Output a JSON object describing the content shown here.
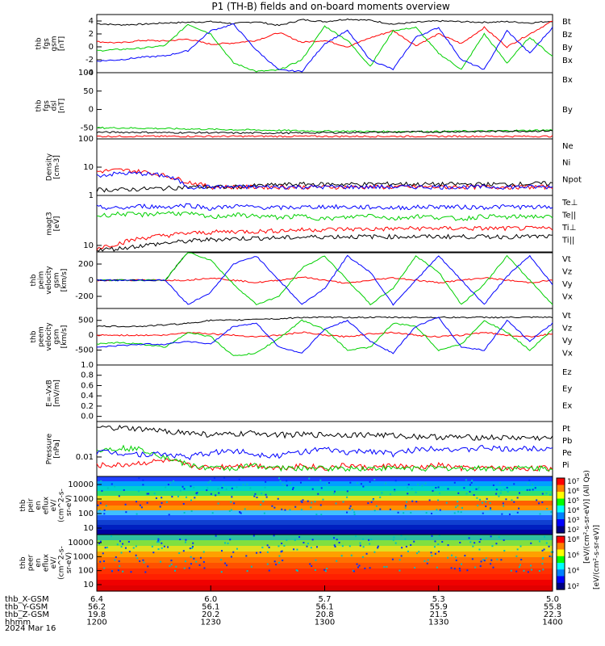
{
  "title": "P1 (TH-B) fields and on-board moments overview",
  "colors": {
    "black": "#000000",
    "red": "#ff0000",
    "green": "#00d000",
    "blue": "#0000ff"
  },
  "chart_data": [
    {
      "id": "fgs",
      "type": "line",
      "ylabel": [
        "thb",
        "fgs",
        "gsm",
        "[nT]"
      ],
      "ylim": [
        -4,
        5
      ],
      "ticks": [
        -4,
        -2,
        0,
        2,
        4
      ],
      "series": [
        {
          "name": "Bt",
          "color": "#000000",
          "values": [
            3.6,
            3.4,
            3.5,
            3.7,
            3.8,
            3.9,
            3.6,
            3.9,
            3.3,
            4.2,
            3.9,
            4.3,
            4.1,
            3.5,
            3.8,
            4.0,
            3.9,
            3.8,
            3.9,
            3.7,
            4.0
          ]
        },
        {
          "name": "Bz",
          "color": "#ff0000",
          "values": [
            0.8,
            0.6,
            1.0,
            0.9,
            1.2,
            0.4,
            0.6,
            1.0,
            2.2,
            0.7,
            1.0,
            0.0,
            1.4,
            2.5,
            0.2,
            2.0,
            0.5,
            3.0,
            0.0,
            2.0,
            4.0
          ]
        },
        {
          "name": "By",
          "color": "#00d000",
          "values": [
            -0.6,
            -0.4,
            -0.2,
            0.2,
            3.5,
            2.0,
            -2.5,
            -3.8,
            -3.6,
            -2.0,
            3.2,
            1.0,
            -3.0,
            2.5,
            3.0,
            -1.0,
            -3.5,
            2.0,
            -2.5,
            1.5,
            -1.5
          ]
        },
        {
          "name": "Bx",
          "color": "#0000ff",
          "values": [
            -2.2,
            -2.0,
            -1.6,
            -1.4,
            -0.6,
            2.5,
            3.5,
            -0.5,
            -3.6,
            -3.8,
            0.5,
            2.5,
            -2.0,
            -3.5,
            1.5,
            3.0,
            -2.0,
            -3.5,
            2.5,
            -1.0,
            3.0
          ]
        }
      ],
      "legend": [
        "Bt",
        "Bz",
        "By",
        "Bx"
      ]
    },
    {
      "id": "fgsdsl",
      "type": "line",
      "ylabel": [
        "thb",
        "fgs",
        "dsl",
        "[nT]"
      ],
      "ylim": [
        -80,
        100
      ],
      "ticks": [
        -50,
        0,
        50,
        100
      ],
      "series": [
        {
          "name": "Bz",
          "color": "#ff0000",
          "values": [
            -73,
            -73,
            -73,
            -73,
            -73,
            -73,
            -73,
            -73,
            -73,
            -73,
            -73,
            -73,
            -73,
            -73,
            -73,
            -73,
            -73,
            -73,
            -73,
            -73,
            -73
          ]
        },
        {
          "name": "By",
          "color": "#00d000",
          "values": [
            -50,
            -50,
            -51,
            -52,
            -53,
            -54,
            -55,
            -56,
            -57,
            -58,
            -59,
            -59,
            -60,
            -60,
            -60,
            -60,
            -59,
            -59,
            -58,
            -57,
            -56
          ]
        },
        {
          "name": "Bx",
          "color": "#000000",
          "values": [
            -62,
            -62,
            -62,
            -63,
            -63,
            -63,
            -64,
            -64,
            -64,
            -64,
            -63,
            -63,
            -62,
            -62,
            -61,
            -61,
            -60,
            -60,
            -59,
            -59,
            -58
          ]
        }
      ],
      "legend": [
        "Bx",
        "By"
      ]
    },
    {
      "id": "density",
      "type": "line",
      "scale": "log",
      "ylabel": [
        "Density",
        "[cm-3]"
      ],
      "ylim": [
        1,
        100
      ],
      "ticklabels": [
        "1",
        "10",
        "100"
      ],
      "series": [
        {
          "name": "Ne",
          "color": "#ff0000",
          "values": [
            7,
            8,
            7,
            5,
            3,
            2,
            2,
            2,
            2,
            2,
            2,
            2,
            2,
            2,
            2,
            2,
            2,
            2,
            2,
            2,
            2
          ]
        },
        {
          "name": "Ni",
          "color": "#000000",
          "values": [
            1.6,
            1.6,
            1.7,
            1.8,
            2,
            2,
            2,
            2.2,
            2.4,
            2.5,
            2.5,
            2.5,
            2.5,
            2.6,
            2.5,
            2.5,
            2.5,
            2.5,
            2.5,
            2.6,
            2.7
          ]
        },
        {
          "name": "Npot",
          "color": "#0000ff",
          "values": [
            5,
            6,
            6,
            5,
            2,
            2,
            2,
            2,
            2,
            2,
            2,
            2,
            2,
            2,
            2,
            2,
            2,
            2,
            2,
            2,
            2
          ]
        }
      ],
      "legend": [
        "Ne",
        "Ni",
        "Npot"
      ]
    },
    {
      "id": "temp",
      "type": "line",
      "scale": "log",
      "ylabel": [
        "magt3",
        "[eV]"
      ],
      "ylim": [
        6,
        500
      ],
      "ticklabels": [
        "10"
      ],
      "series": [
        {
          "name": "Te⊥",
          "color": "#ff0000",
          "values": [
            8,
            12,
            18,
            22,
            26,
            28,
            30,
            30,
            32,
            34,
            35,
            36,
            36,
            37,
            38,
            38,
            38,
            38,
            38,
            38,
            38
          ]
        },
        {
          "name": "Te||",
          "color": "#000000",
          "values": [
            7,
            8,
            10,
            12,
            14,
            16,
            17,
            18,
            18,
            19,
            20,
            20,
            20,
            20,
            20,
            20,
            20,
            20,
            20,
            20,
            20
          ]
        },
        {
          "name": "Ti⊥",
          "color": "#0000ff",
          "values": [
            200,
            180,
            220,
            200,
            240,
            180,
            220,
            200,
            190,
            200,
            210,
            200,
            200,
            190,
            200,
            210,
            200,
            200,
            210,
            200,
            200
          ]
        },
        {
          "name": "Ti||",
          "color": "#00d000",
          "values": [
            100,
            120,
            110,
            130,
            120,
            90,
            110,
            100,
            90,
            100,
            80,
            90,
            110,
            80,
            100,
            90,
            80,
            100,
            90,
            100,
            90
          ]
        }
      ],
      "legend": [
        "Te⊥",
        "Te||",
        "Ti⊥",
        "Ti||"
      ]
    },
    {
      "id": "vi",
      "type": "line",
      "ylabel": [
        "thb",
        "peim",
        "velocity",
        "gsm",
        "[km/s]"
      ],
      "ylim": [
        -350,
        350
      ],
      "ticks": [
        -200,
        0,
        200
      ],
      "series": [
        {
          "name": "Vt",
          "color": "#000000",
          "values": [
            0,
            0,
            0,
            0,
            350,
            350,
            350,
            350,
            350,
            350,
            350,
            350,
            350,
            350,
            350,
            350,
            350,
            350,
            350,
            350,
            350
          ]
        },
        {
          "name": "Vz",
          "color": "#ff0000",
          "values": [
            0,
            0,
            0,
            0,
            0,
            30,
            0,
            -30,
            0,
            40,
            0,
            -40,
            0,
            30,
            0,
            -30,
            0,
            30,
            0,
            -30,
            0
          ]
        },
        {
          "name": "Vy",
          "color": "#00d000",
          "values": [
            0,
            0,
            0,
            0,
            350,
            250,
            -50,
            -300,
            -200,
            150,
            300,
            0,
            -300,
            -100,
            300,
            100,
            -300,
            -50,
            300,
            0,
            -300
          ]
        },
        {
          "name": "Vx",
          "color": "#0000ff",
          "values": [
            0,
            0,
            0,
            0,
            -300,
            -150,
            200,
            300,
            0,
            -300,
            -100,
            300,
            100,
            -300,
            0,
            300,
            0,
            -300,
            50,
            300,
            -50
          ]
        }
      ],
      "legend": [
        "Vt",
        "Vz",
        "Vy",
        "Vx"
      ]
    },
    {
      "id": "ve",
      "type": "line",
      "ylabel": [
        "thb",
        "peem",
        "velocity",
        "gsm",
        "[km/s]"
      ],
      "ylim": [
        -1000,
        900
      ],
      "ticks": [
        -500,
        0,
        500
      ],
      "series": [
        {
          "name": "Vt",
          "color": "#000000",
          "values": [
            300,
            300,
            300,
            350,
            400,
            500,
            500,
            550,
            550,
            600,
            600,
            600,
            600,
            600,
            600,
            600,
            600,
            600,
            600,
            600,
            600
          ]
        },
        {
          "name": "Vz",
          "color": "#ff0000",
          "values": [
            0,
            0,
            0,
            0,
            100,
            50,
            0,
            -50,
            0,
            100,
            0,
            -50,
            50,
            100,
            0,
            -50,
            0,
            100,
            0,
            -50,
            50
          ]
        },
        {
          "name": "Vy",
          "color": "#00d000",
          "values": [
            -300,
            -250,
            -300,
            -400,
            100,
            -50,
            -700,
            -600,
            -100,
            500,
            200,
            -500,
            -400,
            400,
            300,
            -500,
            -300,
            500,
            100,
            -500,
            200
          ]
        },
        {
          "name": "Vx",
          "color": "#0000ff",
          "values": [
            -400,
            -350,
            -300,
            -300,
            -200,
            -300,
            300,
            400,
            -400,
            -600,
            200,
            500,
            -200,
            -600,
            300,
            600,
            -400,
            -500,
            500,
            -200,
            400
          ]
        }
      ],
      "legend": [
        "Vt",
        "Vz",
        "Vy",
        "Vx"
      ]
    },
    {
      "id": "efield",
      "type": "line",
      "ylabel": [
        "E=-VxB",
        "[mV/m]"
      ],
      "ylim": [
        -0.1,
        1.0
      ],
      "ticklabels": [
        "0.0",
        "0.2",
        "0.4",
        "0.6",
        "0.8",
        "1.0"
      ],
      "series": [],
      "legend": [
        "Ez",
        "Ey",
        "Ex"
      ]
    },
    {
      "id": "pressure",
      "type": "line",
      "scale": "log",
      "ylabel": [
        "Pressure",
        "[nPa]"
      ],
      "ylim": [
        0.003,
        0.09
      ],
      "ticklabels": [
        "0.01"
      ],
      "series": [
        {
          "name": "Pt",
          "color": "#000000",
          "values": [
            0.06,
            0.06,
            0.055,
            0.05,
            0.045,
            0.04,
            0.04,
            0.045,
            0.04,
            0.04,
            0.04,
            0.04,
            0.04,
            0.038,
            0.036,
            0.035,
            0.034,
            0.034,
            0.033,
            0.033,
            0.032
          ]
        },
        {
          "name": "Pb",
          "color": "#ff0000",
          "values": [
            0.006,
            0.006,
            0.007,
            0.008,
            0.006,
            0.005,
            0.006,
            0.006,
            0.005,
            0.006,
            0.005,
            0.006,
            0.005,
            0.006,
            0.005,
            0.006,
            0.005,
            0.005,
            0.005,
            0.005,
            0.005
          ]
        },
        {
          "name": "Pe",
          "color": "#00d000",
          "values": [
            0.015,
            0.018,
            0.016,
            0.01,
            0.006,
            0.005,
            0.005,
            0.006,
            0.005,
            0.005,
            0.005,
            0.005,
            0.005,
            0.005,
            0.005,
            0.005,
            0.005,
            0.005,
            0.005,
            0.005,
            0.005
          ]
        },
        {
          "name": "Pi",
          "color": "#0000ff",
          "values": [
            0.014,
            0.013,
            0.012,
            0.012,
            0.01,
            0.013,
            0.015,
            0.012,
            0.011,
            0.014,
            0.016,
            0.013,
            0.015,
            0.012,
            0.016,
            0.018,
            0.015,
            0.018,
            0.016,
            0.017,
            0.018
          ]
        }
      ],
      "legend": [
        "Pt",
        "Pb",
        "Pe",
        "Pi"
      ]
    },
    {
      "id": "peir",
      "type": "heatmap",
      "ylabel": [
        "thb",
        "peir",
        "en",
        "eflux",
        "eV/",
        "(cm^2-s-",
        "sr-eV)"
      ],
      "ticklabels": [
        "10",
        "100",
        "1000",
        "10000"
      ]
    },
    {
      "id": "peer",
      "type": "heatmap",
      "ylabel": [
        "thb",
        "peer",
        "en",
        "eflux",
        "eV/",
        "(cm^2-s-",
        "sr-eV)"
      ],
      "ticklabels": [
        "10",
        "100",
        "1000",
        "10000"
      ]
    }
  ],
  "colorbar": {
    "label": "[eV/(cm²-s-sr-eV)]",
    "label_ion": "[eV/(cm²-s-sr-eV)] (All Qs)",
    "ion_ticks": [
      "10²",
      "10³",
      "10⁴",
      "10⁵",
      "10⁶",
      "10⁷"
    ],
    "ele_ticks": [
      "10²",
      "10⁴",
      "10⁶",
      "10⁸"
    ]
  },
  "xaxis": {
    "rows": [
      {
        "label": "thb_X-GSM",
        "values": [
          "6.4",
          "6.0",
          "5.7",
          "5.3",
          "5.0"
        ]
      },
      {
        "label": "thb_Y-GSM",
        "values": [
          "56.2",
          "56.1",
          "56.1",
          "55.9",
          "55.8"
        ]
      },
      {
        "label": "thb_Z-GSM",
        "values": [
          "19.8",
          "20.2",
          "20.8",
          "21.5",
          "22.3"
        ]
      },
      {
        "label": "hhmm",
        "values": [
          "1200",
          "1230",
          "1300",
          "1330",
          "1400"
        ]
      }
    ],
    "date": "2024 Mar 16"
  }
}
